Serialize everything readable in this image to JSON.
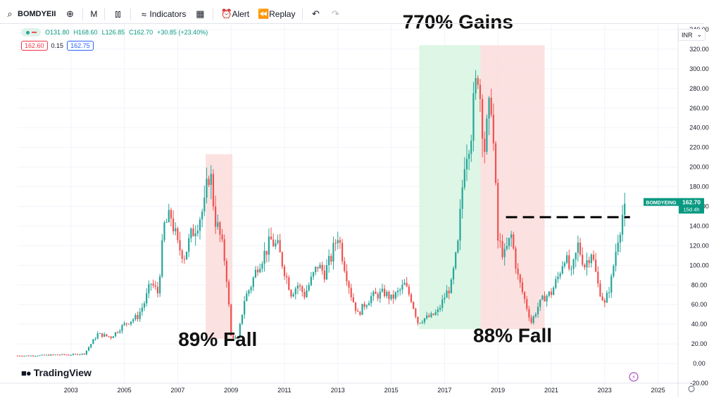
{
  "toolbar": {
    "symbol": "BOMDYEII",
    "interval": "M",
    "indicators_label": "Indicators",
    "alert_label": "Alert",
    "replay_label": "Replay"
  },
  "legend": {
    "open": "O131.80",
    "high": "H168.60",
    "low": "L126.85",
    "close": "C162.70",
    "change": "+30.85 (+23.40%)"
  },
  "price_boxes": {
    "sell": "162.60",
    "spread": "0.15",
    "buy": "162.75"
  },
  "currency": "INR",
  "brand": {
    "name": "TradingView"
  },
  "colors": {
    "up": "#26a69a",
    "down": "#ef5350",
    "gain_zone": "#d7f5e1",
    "fall_zone": "#fbdcdc",
    "label_bg": "#089981"
  },
  "chart_data": {
    "type": "candlestick",
    "symbol_label": "BOMDYEING",
    "last_price": "162.70",
    "countdown": "15d 4h",
    "interval": "monthly",
    "ylim": [
      -20,
      345
    ],
    "xlim": [
      2001.0,
      2025.75
    ],
    "y_ticks": [
      "340.00",
      "320.00",
      "300.00",
      "280.00",
      "260.00",
      "240.00",
      "220.00",
      "200.00",
      "180.00",
      "160.00",
      "140.00",
      "120.00",
      "100.00",
      "80.00",
      "60.00",
      "40.00",
      "20.00",
      "0.00",
      "-20.00"
    ],
    "y_tick_values": [
      340,
      320,
      300,
      280,
      260,
      240,
      220,
      200,
      180,
      160,
      140,
      120,
      100,
      80,
      60,
      40,
      20,
      0,
      -20
    ],
    "x_ticks": [
      "2003",
      "2005",
      "2007",
      "2009",
      "2011",
      "2013",
      "2015",
      "2017",
      "2019",
      "2021",
      "2023",
      "2025"
    ],
    "x_tick_values": [
      2003,
      2005,
      2007,
      2009,
      2011,
      2013,
      2015,
      2017,
      2019,
      2021,
      2023,
      2025
    ],
    "grid": true,
    "closes": [
      [
        2001.0,
        8
      ],
      [
        2001.5,
        8
      ],
      [
        2002.0,
        8.5
      ],
      [
        2002.5,
        9
      ],
      [
        2003.0,
        9
      ],
      [
        2003.5,
        10
      ],
      [
        2003.8,
        22
      ],
      [
        2004.0,
        30
      ],
      [
        2004.5,
        27
      ],
      [
        2005.0,
        40
      ],
      [
        2005.5,
        48
      ],
      [
        2005.75,
        62
      ],
      [
        2006.0,
        82
      ],
      [
        2006.25,
        72
      ],
      [
        2006.5,
        140
      ],
      [
        2006.75,
        150
      ],
      [
        2007.0,
        120
      ],
      [
        2007.25,
        110
      ],
      [
        2007.5,
        130
      ],
      [
        2007.75,
        145
      ],
      [
        2008.0,
        160
      ],
      [
        2008.2,
        200
      ],
      [
        2008.4,
        148
      ],
      [
        2008.6,
        128
      ],
      [
        2008.8,
        100
      ],
      [
        2009.0,
        28
      ],
      [
        2009.25,
        25
      ],
      [
        2009.5,
        65
      ],
      [
        2009.75,
        80
      ],
      [
        2010.0,
        100
      ],
      [
        2010.25,
        112
      ],
      [
        2010.5,
        125
      ],
      [
        2010.75,
        118
      ],
      [
        2011.0,
        95
      ],
      [
        2011.25,
        72
      ],
      [
        2011.5,
        80
      ],
      [
        2011.75,
        70
      ],
      [
        2012.0,
        85
      ],
      [
        2012.25,
        100
      ],
      [
        2012.5,
        92
      ],
      [
        2012.75,
        108
      ],
      [
        2013.0,
        132
      ],
      [
        2013.25,
        100
      ],
      [
        2013.5,
        70
      ],
      [
        2013.75,
        50
      ],
      [
        2014.0,
        60
      ],
      [
        2014.25,
        68
      ],
      [
        2014.5,
        70
      ],
      [
        2014.75,
        72
      ],
      [
        2015.0,
        66
      ],
      [
        2015.25,
        72
      ],
      [
        2015.5,
        80
      ],
      [
        2015.75,
        66
      ],
      [
        2016.0,
        42
      ],
      [
        2016.25,
        46
      ],
      [
        2016.5,
        48
      ],
      [
        2016.75,
        53
      ],
      [
        2017.0,
        68
      ],
      [
        2017.25,
        80
      ],
      [
        2017.5,
        120
      ],
      [
        2017.75,
        210
      ],
      [
        2018.0,
        240
      ],
      [
        2018.25,
        300
      ],
      [
        2018.5,
        220
      ],
      [
        2018.75,
        270
      ],
      [
        2019.0,
        125
      ],
      [
        2019.25,
        110
      ],
      [
        2019.5,
        130
      ],
      [
        2019.75,
        88
      ],
      [
        2020.0,
        65
      ],
      [
        2020.25,
        42
      ],
      [
        2020.5,
        58
      ],
      [
        2020.75,
        68
      ],
      [
        2021.0,
        72
      ],
      [
        2021.25,
        88
      ],
      [
        2021.5,
        110
      ],
      [
        2021.75,
        90
      ],
      [
        2022.0,
        120
      ],
      [
        2022.25,
        100
      ],
      [
        2022.5,
        115
      ],
      [
        2022.75,
        80
      ],
      [
        2023.0,
        60
      ],
      [
        2023.25,
        85
      ],
      [
        2023.5,
        130
      ],
      [
        2023.75,
        162.7
      ]
    ],
    "reference_line": {
      "y": 149,
      "x_start": 2019.3,
      "x_end": 2023.95,
      "style": "dashed"
    },
    "zones": [
      {
        "type": "fall",
        "x_start": 2008.05,
        "x_end": 2009.05,
        "y_start": 25,
        "y_end": 213
      },
      {
        "type": "gain",
        "x_start": 2016.05,
        "x_end": 2018.35,
        "y_start": 35,
        "y_end": 324
      },
      {
        "type": "fall",
        "x_start": 2018.35,
        "x_end": 2020.75,
        "y_start": 35,
        "y_end": 324
      }
    ],
    "annotations": [
      {
        "text": "770% Gains",
        "x": 2017.5,
        "y": 341
      },
      {
        "text": "89% Fall",
        "x": 2008.5,
        "y": 18
      },
      {
        "text": "88% Fall",
        "x": 2019.55,
        "y": 22
      }
    ]
  }
}
